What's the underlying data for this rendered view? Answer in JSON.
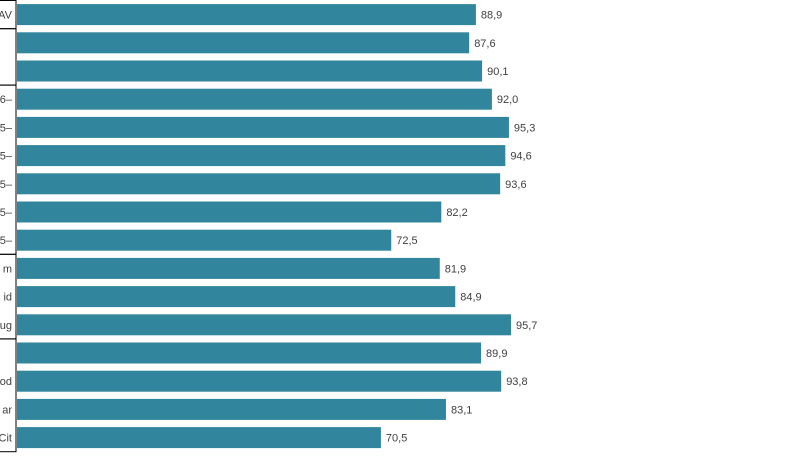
{
  "chart_data": {
    "type": "bar",
    "orientation": "horizontal",
    "grid": false,
    "legend": "none",
    "bar_color": "#31859c",
    "label_color": "#404040",
    "categories": [
      "AV",
      "",
      "",
      "6–",
      "5–",
      "5–",
      "5–",
      "5–",
      "5–",
      "m",
      "id",
      "ug",
      "",
      "od",
      "ar",
      "Cit"
    ],
    "values": [
      88.9,
      87.6,
      90.1,
      92.0,
      95.3,
      94.6,
      93.6,
      82.2,
      72.5,
      81.9,
      84.9,
      95.7,
      89.9,
      93.8,
      83.1,
      70.5
    ],
    "value_labels": [
      "88,9",
      "87,6",
      "90,1",
      "92,0",
      "95,3",
      "94,6",
      "93,6",
      "82,2",
      "72,5",
      "81,9",
      "84,9",
      "95,7",
      "89,9",
      "93,8",
      "83,1",
      "70,5"
    ],
    "xlim": [
      0,
      100
    ]
  }
}
